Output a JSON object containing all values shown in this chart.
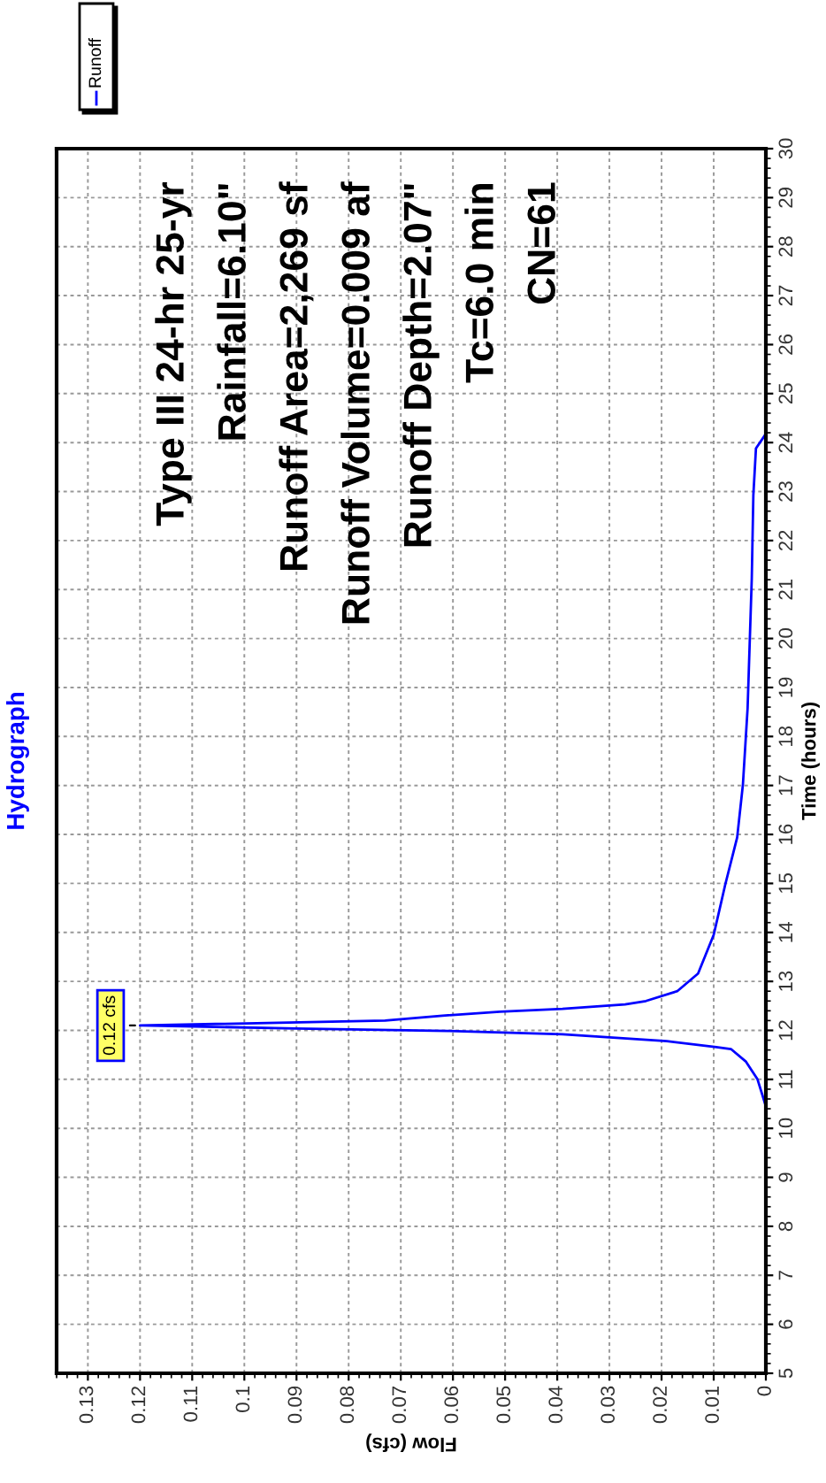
{
  "chart_data": {
    "type": "line",
    "title": "Hydrograph",
    "xlabel": "Flow (cfs)",
    "ylabel": "Time (hours)",
    "x": [
      0.0,
      0.0016,
      0.0038,
      0.0067,
      0.0095,
      0.019,
      0.039,
      0.061,
      0.09,
      0.12,
      0.073,
      0.062,
      0.051,
      0.039,
      0.027,
      0.023,
      0.017,
      0.013,
      0.01,
      0.0078,
      0.0055,
      0.0044,
      0.0035,
      0.0027,
      0.0024,
      0.0019,
      0.0
    ],
    "series": [
      {
        "name": "Runoff",
        "color": "#0000ff",
        "values": [
          10.45,
          11.0,
          11.36,
          11.62,
          11.66,
          11.78,
          11.92,
          11.99,
          12.04,
          12.1,
          12.2,
          12.3,
          12.38,
          12.44,
          12.53,
          12.6,
          12.8,
          13.16,
          13.95,
          14.97,
          15.94,
          17.02,
          18.58,
          21.23,
          22.92,
          23.88,
          24.18
        ]
      }
    ],
    "xlim": [
      0.136,
      0
    ],
    "xticks": [
      0,
      0.01,
      0.02,
      0.03,
      0.04,
      0.05,
      0.06,
      0.07,
      0.08,
      0.09,
      0.1,
      0.11,
      0.12,
      0.13
    ],
    "ylim": [
      5,
      30
    ],
    "yticks": [
      5,
      6,
      7,
      8,
      9,
      10,
      11,
      12,
      13,
      14,
      15,
      16,
      17,
      18,
      19,
      20,
      21,
      22,
      23,
      24,
      25,
      26,
      27,
      28,
      29,
      30
    ],
    "grid": true,
    "legend": "top left",
    "line_style": "solid",
    "marker": "none",
    "annotations": [
      "Type III 24-hr 25-yr",
      "Rainfall=6.10\"",
      "Runoff Area=2,269 sf",
      "Runoff Volume=0.009 af",
      "Runoff Depth=2.07\"",
      "Tc=6.0 min",
      "CN=61",
      {
        "text": "0.12 cfs",
        "x": 0.12,
        "y": 12.1
      }
    ]
  }
}
